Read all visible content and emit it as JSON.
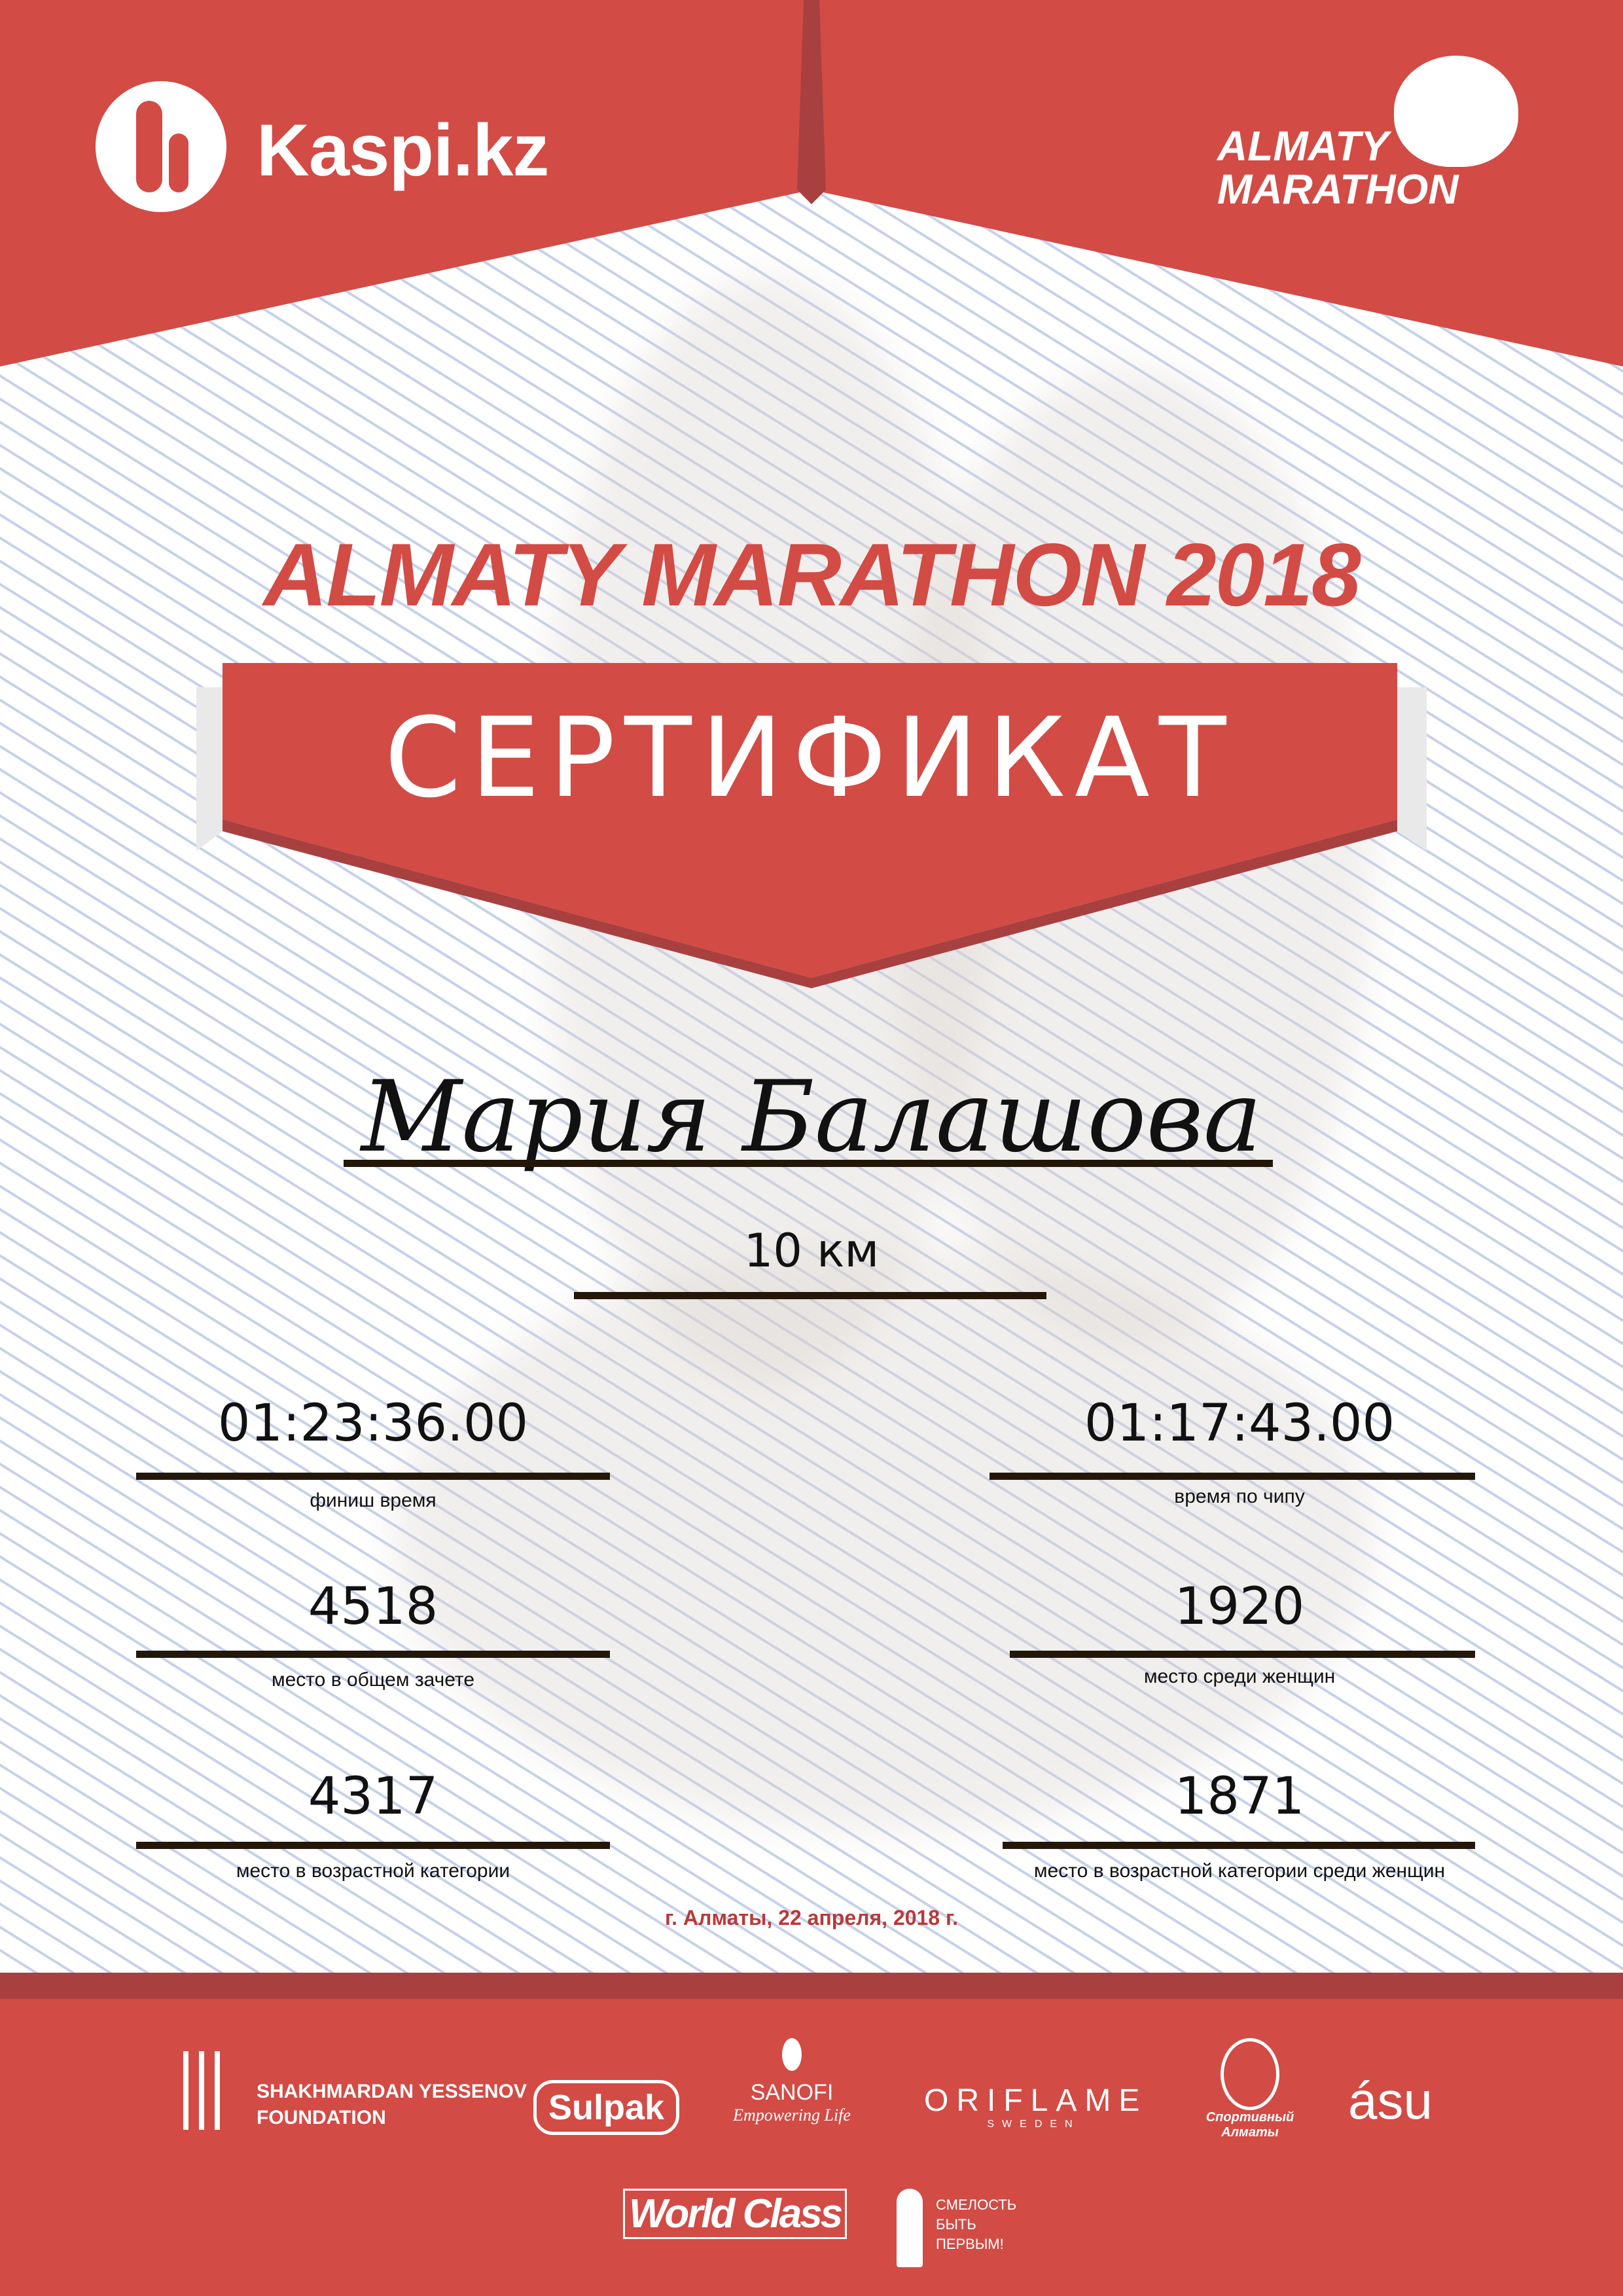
{
  "colors": {
    "brand_red": "#d24b45",
    "dark_red": "#a84040",
    "rule": "#231709",
    "bg_lines": "#c7d1ec"
  },
  "header": {
    "kaspi_logo": "Kaspi.kz",
    "almaty_logo_line1": "ALMATY",
    "almaty_logo_line2": "MARATHON"
  },
  "title": "ALMATY MARATHON 2018",
  "banner": "СЕРТИФИКАТ",
  "participant": {
    "name": "Мария Балашова",
    "distance": "10 км"
  },
  "results": [
    {
      "value": "01:23:36.00",
      "label": "финиш время"
    },
    {
      "value": "01:17:43.00",
      "label": "время по чипу"
    },
    {
      "value": "4518",
      "label": "место в общем зачете"
    },
    {
      "value": "1920",
      "label": "место среди женщин"
    },
    {
      "value": "4317",
      "label": "место в возрастной категории"
    },
    {
      "value": "1871",
      "label": "место в возрастной категории среди женщин"
    }
  ],
  "date": "г. Алматы, 22 апреля, 2018 г.",
  "sponsors": {
    "yessenov_line1": "SHAKHMARDAN YESSENOV",
    "yessenov_line2": "FOUNDATION",
    "sulpak": "Sulpak",
    "sanofi": "SANOFI",
    "sanofi_tag": "Empowering Life",
    "oriflame": "ORIFLAME",
    "oriflame_sub": "SWEDEN",
    "sport_almaty": "Спортивный Алматы",
    "asu": "ásu",
    "worldclass": "World Class",
    "fund_line1": "СМЕЛОСТЬ",
    "fund_line2": "БЫТЬ",
    "fund_line3": "ПЕРВЫМ!"
  }
}
